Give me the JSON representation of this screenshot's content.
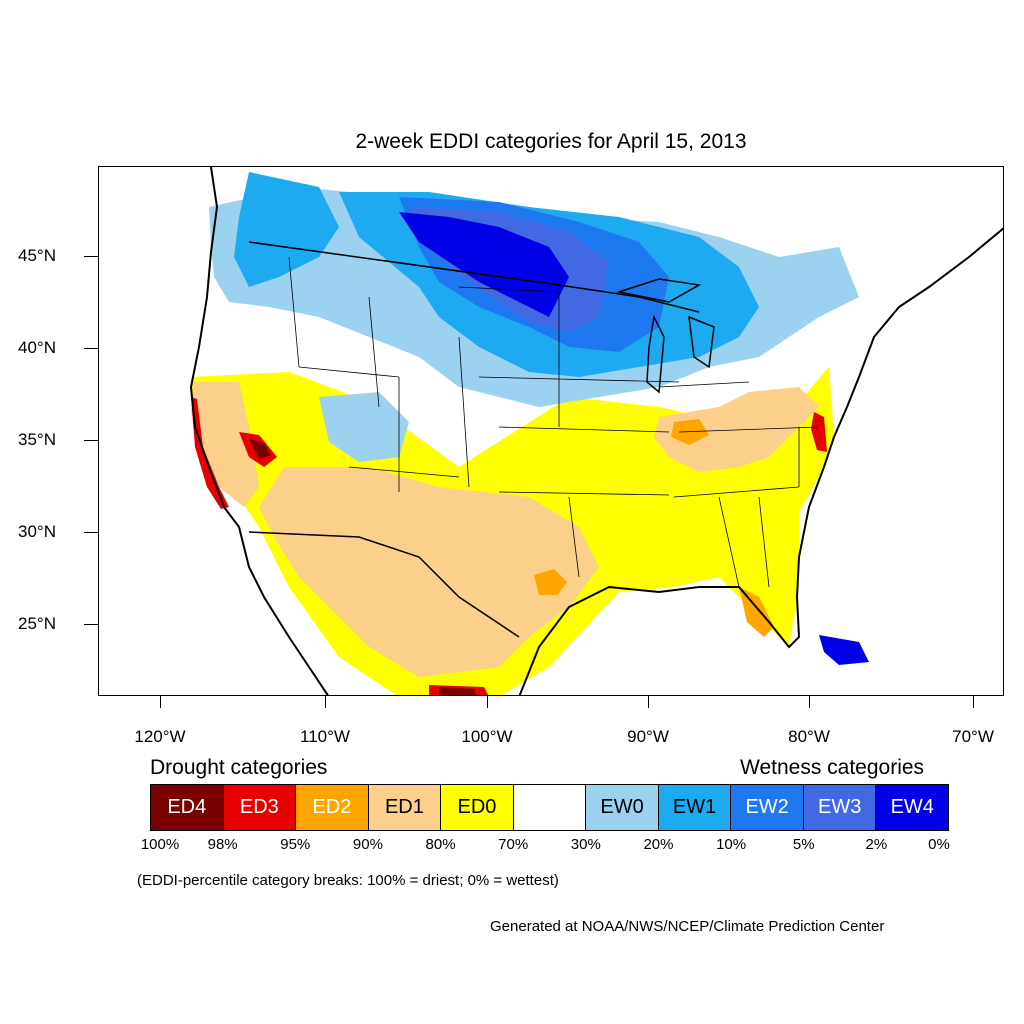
{
  "title": "2-week EDDI categories for April 15, 2013",
  "map": {
    "projection": "lat-lon",
    "lon_range": [
      -124,
      -68.5
    ],
    "lat_range": [
      21,
      49.5
    ],
    "lat_ticks": [
      "45°N",
      "40°N",
      "35°N",
      "30°N",
      "25°N"
    ],
    "lon_ticks": [
      "120°W",
      "110°W",
      "100°W",
      "90°W",
      "80°W",
      "70°W"
    ],
    "colors": {
      "ED4": "#7a0000",
      "ED3": "#e60000",
      "ED2": "#ffa500",
      "ED1": "#fcd08a",
      "ED0": "#ffff00",
      "neutral": "#ffffff",
      "EW0": "#9bd2f0",
      "EW1": "#1eaaf0",
      "EW2": "#1e78f0",
      "EW3": "#4169e1",
      "EW4": "#0000e6"
    }
  },
  "legend": {
    "drought_heading": "Drought categories",
    "wetness_heading": "Wetness categories",
    "categories": [
      {
        "label": "ED4",
        "color": "#7a0000",
        "text_color": "#ffffff"
      },
      {
        "label": "ED3",
        "color": "#e60000",
        "text_color": "#ffffff"
      },
      {
        "label": "ED2",
        "color": "#ffa500",
        "text_color": "#ffffff"
      },
      {
        "label": "ED1",
        "color": "#fcd08a",
        "text_color": "#000000"
      },
      {
        "label": "ED0",
        "color": "#ffff00",
        "text_color": "#000000"
      },
      {
        "label": "",
        "color": "#ffffff",
        "text_color": "#000000"
      },
      {
        "label": "EW0",
        "color": "#9bd2f0",
        "text_color": "#000000"
      },
      {
        "label": "EW1",
        "color": "#1eaaf0",
        "text_color": "#000000"
      },
      {
        "label": "EW2",
        "color": "#1e78f0",
        "text_color": "#ffffff"
      },
      {
        "label": "EW3",
        "color": "#4169e1",
        "text_color": "#ffffff"
      },
      {
        "label": "EW4",
        "color": "#0000e6",
        "text_color": "#ffffff"
      }
    ],
    "breaks": [
      "100%",
      "98%",
      "95%",
      "90%",
      "80%",
      "70%",
      "30%",
      "20%",
      "10%",
      "5%",
      "2%",
      "0%"
    ]
  },
  "note": "(EDDI-percentile category breaks: 100% = driest; 0% = wettest)",
  "credit": "Generated at NOAA/NWS/NCEP/Climate Prediction Center"
}
